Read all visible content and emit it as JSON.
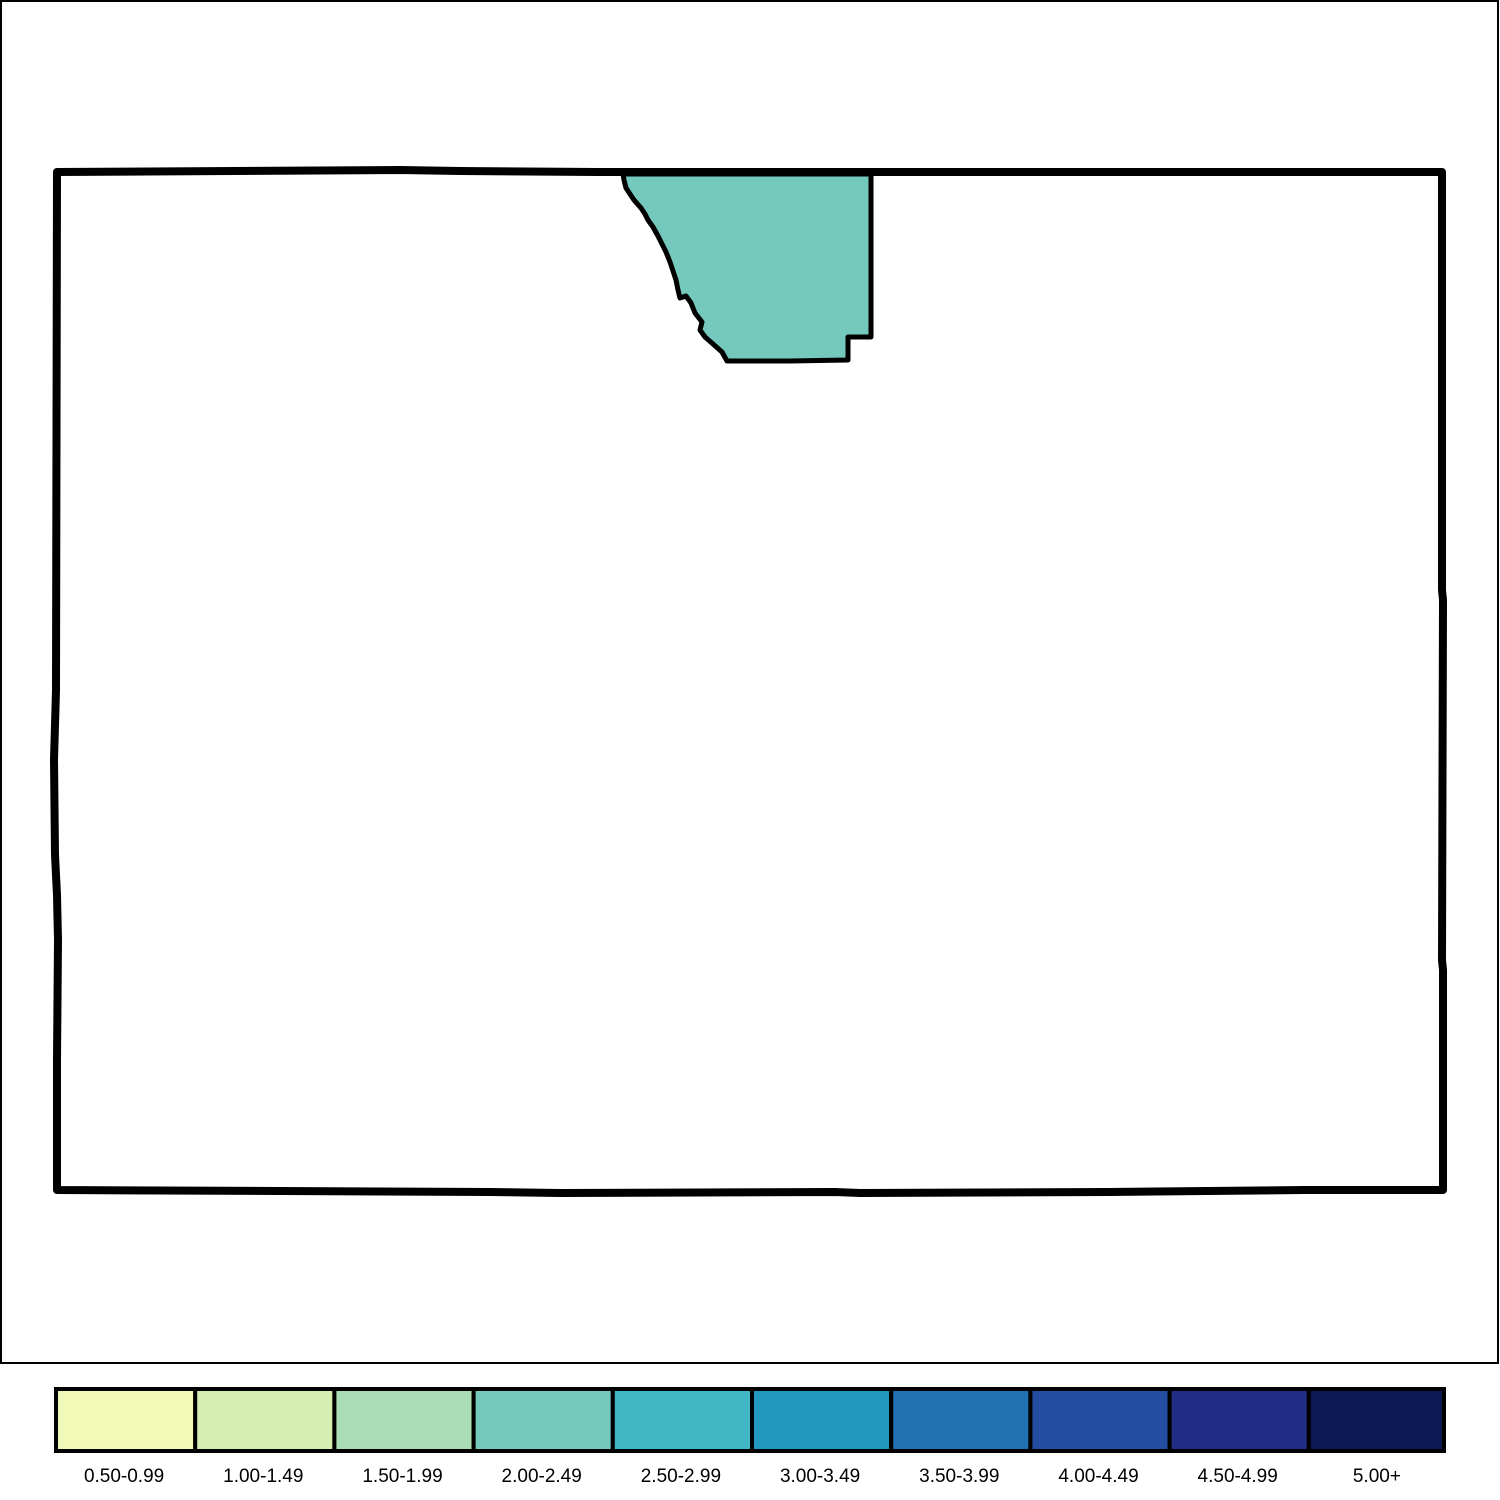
{
  "map": {
    "state_outline_color": "#000000",
    "region_fill_color": "#74c8bc",
    "region_class": "2.00-2.49"
  },
  "legend": {
    "items": [
      {
        "label": "0.50-0.99",
        "color": "#f1f9b9"
      },
      {
        "label": "1.00-1.49",
        "color": "#d5efb2"
      },
      {
        "label": "1.50-1.99",
        "color": "#aadcb6"
      },
      {
        "label": "2.00-2.49",
        "color": "#74c8bc"
      },
      {
        "label": "2.50-2.99",
        "color": "#41b6c4"
      },
      {
        "label": "3.00-3.49",
        "color": "#2298c1"
      },
      {
        "label": "3.50-3.99",
        "color": "#2271b0"
      },
      {
        "label": "4.00-4.49",
        "color": "#234da0"
      },
      {
        "label": "4.50-4.99",
        "color": "#1f2d84"
      },
      {
        "label": "5.00+",
        "color": "#0b1a55"
      }
    ]
  }
}
